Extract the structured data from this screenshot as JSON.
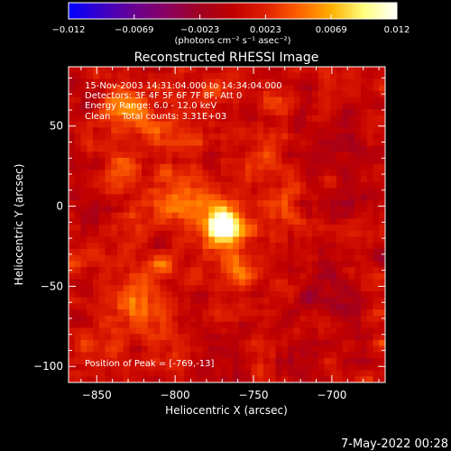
{
  "colorbar": {
    "ticks": [
      "−0.012",
      "−0.0069",
      "−0.0023",
      "0.0023",
      "0.0069",
      "0.012"
    ],
    "unit_label": "(photons cm⁻² s⁻¹ asec⁻²)",
    "colormap": [
      "#0000ff",
      "#3a00c8",
      "#6a0090",
      "#8a0060",
      "#a00020",
      "#c00000",
      "#e02000",
      "#ff6000",
      "#ffb000",
      "#ffff80",
      "#ffffff"
    ]
  },
  "chart_data": {
    "type": "heatmap",
    "title": "Reconstructed RHESSI Image",
    "xlabel": "Heliocentric X (arcsec)",
    "ylabel": "Heliocentric Y (arcsec)",
    "xlim": [
      -868,
      -666
    ],
    "ylim": [
      -110,
      87
    ],
    "xticks": [
      -850,
      -800,
      -750,
      -700
    ],
    "yticks": [
      -100,
      -50,
      0,
      50
    ],
    "vlim": [
      -0.012,
      0.012
    ],
    "info_lines": [
      "15-Nov-2003 14:31:04.000 to 14:34:04.000",
      "Detectors: 3F 4F 5F 6F 7F 8F, Att 0",
      "Energy Range: 6.0 - 12.0 keV",
      "Clean    Total counts: 3.31E+03"
    ],
    "peak_label": "Position of Peak = [-769,-13]",
    "peak": {
      "x": -769,
      "y": -13,
      "value": 0.012
    },
    "sources": [
      {
        "x": -769,
        "y": -13,
        "amp": 0.0125,
        "sigma": 7
      },
      {
        "x": -772,
        "y": -8,
        "amp": 0.0045,
        "sigma": 14
      },
      {
        "x": -832,
        "y": 60,
        "amp": 0.0052,
        "sigma": 12
      },
      {
        "x": -838,
        "y": 22,
        "amp": 0.0035,
        "sigma": 9
      },
      {
        "x": -815,
        "y": 5,
        "amp": 0.003,
        "sigma": 12
      },
      {
        "x": -792,
        "y": 0,
        "amp": 0.0034,
        "sigma": 9
      },
      {
        "x": -745,
        "y": 28,
        "amp": 0.003,
        "sigma": 10
      },
      {
        "x": -730,
        "y": -5,
        "amp": 0.0028,
        "sigma": 10
      },
      {
        "x": -760,
        "y": -42,
        "amp": 0.003,
        "sigma": 10
      },
      {
        "x": -825,
        "y": -62,
        "amp": 0.005,
        "sigma": 12
      },
      {
        "x": -812,
        "y": -38,
        "amp": 0.0032,
        "sigma": 9
      },
      {
        "x": -845,
        "y": -35,
        "amp": 0.0028,
        "sigma": 9
      },
      {
        "x": -800,
        "y": 45,
        "amp": 0.0026,
        "sigma": 10
      },
      {
        "x": -775,
        "y": 70,
        "amp": 0.0026,
        "sigma": 8
      },
      {
        "x": -852,
        "y": -85,
        "amp": 0.002,
        "sigma": 9
      },
      {
        "x": -735,
        "y": 60,
        "amp": 0.0018,
        "sigma": 8
      },
      {
        "x": -700,
        "y": 40,
        "amp": -0.0025,
        "sigma": 10
      },
      {
        "x": -700,
        "y": -55,
        "amp": -0.0028,
        "sigma": 12
      },
      {
        "x": -690,
        "y": 5,
        "amp": -0.002,
        "sigma": 9
      },
      {
        "x": -860,
        "y": 0,
        "amp": -0.002,
        "sigma": 8
      },
      {
        "x": -720,
        "y": -95,
        "amp": -0.0022,
        "sigma": 10
      },
      {
        "x": -770,
        "y": -100,
        "amp": -0.0018,
        "sigma": 9
      }
    ]
  },
  "footer": {
    "timestamp": "7-May-2022 00:28"
  }
}
